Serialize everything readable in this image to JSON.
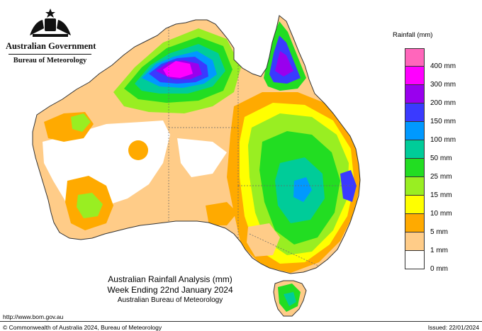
{
  "header": {
    "government": "Australian Government",
    "bureau": "Bureau of Meteorology"
  },
  "legend": {
    "title": "Rainfall (mm)",
    "bands": [
      {
        "label": "",
        "color": "#ff66bb"
      },
      {
        "label": "400 mm",
        "color": "#ff00ff"
      },
      {
        "label": "300 mm",
        "color": "#9900ee"
      },
      {
        "label": "200 mm",
        "color": "#3a3aff"
      },
      {
        "label": "150 mm",
        "color": "#0099ff"
      },
      {
        "label": "100 mm",
        "color": "#00cc99"
      },
      {
        "label": "50 mm",
        "color": "#22dd22"
      },
      {
        "label": "25 mm",
        "color": "#99ee22"
      },
      {
        "label": "15 mm",
        "color": "#ffff00"
      },
      {
        "label": "10 mm",
        "color": "#ffaa00"
      },
      {
        "label": "5 mm",
        "color": "#ffcc88"
      },
      {
        "label": "1 mm",
        "color": "#ffffff"
      }
    ],
    "bottom_label": "0 mm"
  },
  "title": {
    "line1": "Australian Rainfall Analysis (mm)",
    "line2": "Week Ending 22nd January 2024",
    "line3": "Australian Bureau of Meteorology"
  },
  "footer": {
    "url": "http://www.bom.gov.au",
    "copyright": "© Commonwealth of Australia 2024, Bureau of Meteorology",
    "issued": "Issued: 22/01/2024"
  }
}
